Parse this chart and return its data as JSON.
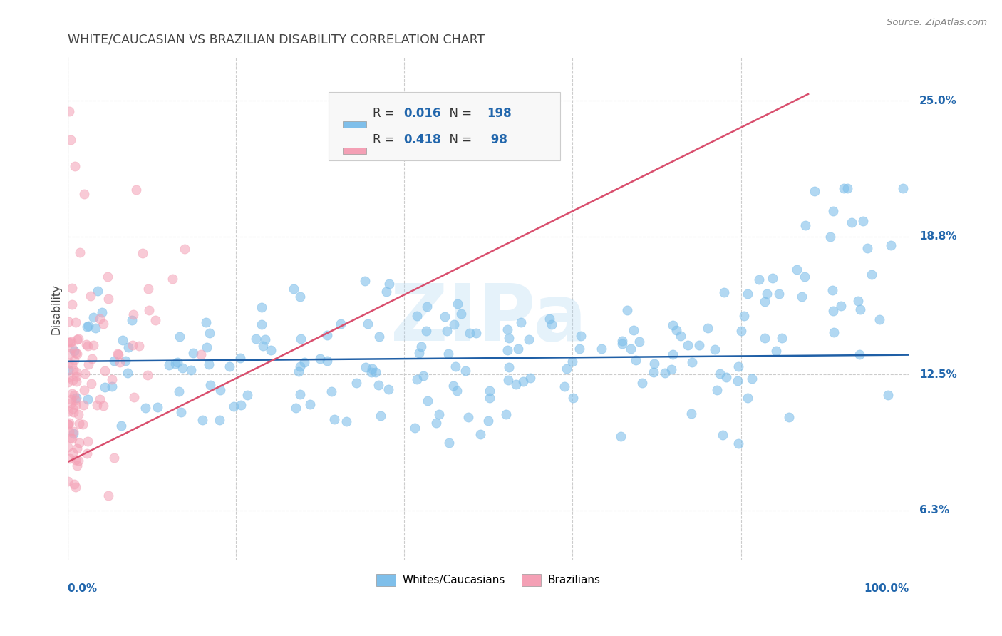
{
  "title": "WHITE/CAUCASIAN VS BRAZILIAN DISABILITY CORRELATION CHART",
  "source": "Source: ZipAtlas.com",
  "ylabel": "Disability",
  "ytick_labels": [
    "6.3%",
    "12.5%",
    "18.8%",
    "25.0%"
  ],
  "ytick_values": [
    0.063,
    0.125,
    0.188,
    0.25
  ],
  "blue_R": "0.016",
  "blue_N": "198",
  "pink_R": "0.418",
  "pink_N": " 98",
  "blue_color": "#7fbfea",
  "pink_color": "#f4a0b5",
  "blue_line_color": "#1f5fa6",
  "pink_line_color": "#d94f6e",
  "watermark": "ZIPa",
  "background_color": "#ffffff",
  "grid_color": "#cccccc",
  "title_color": "#444444",
  "axis_label_color": "#2166ac",
  "legend_text_color": "#2166ac",
  "ymin": 0.04,
  "ymax": 0.27,
  "xmin": 0.0,
  "xmax": 1.0
}
